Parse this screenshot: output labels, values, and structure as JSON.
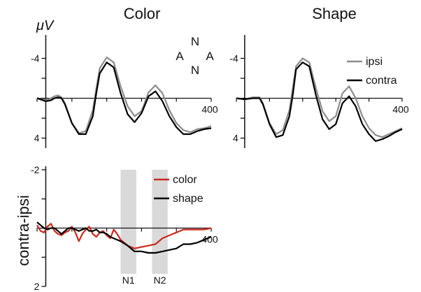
{
  "unit_label": "μV",
  "diagram_letters": {
    "top": "N",
    "left": "A",
    "right": "A",
    "bottom": "N",
    "left_color": "#5b4fd6"
  },
  "chart_data": [
    {
      "type": "line",
      "title": "Color",
      "xlim": [
        -100,
        400
      ],
      "ylim": [
        -6,
        5
      ],
      "y_inverted": true,
      "yticks": [
        -4,
        4
      ],
      "xtick_label": "400",
      "series": [
        {
          "name": "ipsi",
          "color": "#8c8c8c",
          "x": [
            -100,
            -75,
            -60,
            -50,
            -40,
            -30,
            -20,
            0,
            20,
            40,
            60,
            70,
            80,
            100,
            120,
            140,
            160,
            180,
            200,
            220,
            240,
            260,
            280,
            300,
            320,
            340,
            360,
            380,
            400
          ],
          "y": [
            0,
            0.2,
            0,
            -0.2,
            -0.3,
            -0.1,
            0.5,
            2.5,
            3.5,
            3.3,
            1.2,
            -1,
            -3,
            -4.1,
            -3.6,
            -1.2,
            0.8,
            1.8,
            1.3,
            -0.6,
            -1.3,
            -0.5,
            1.2,
            2.5,
            3.2,
            3.4,
            3.1,
            3,
            2.8
          ]
        },
        {
          "name": "contra",
          "color": "#000000",
          "x": [
            -100,
            -75,
            -60,
            -50,
            -40,
            -30,
            -20,
            0,
            20,
            40,
            60,
            70,
            80,
            100,
            120,
            140,
            160,
            180,
            200,
            220,
            240,
            260,
            280,
            300,
            320,
            340,
            360,
            380,
            400
          ],
          "y": [
            0,
            0.3,
            0.2,
            0,
            -0.1,
            0,
            0.6,
            2.5,
            3.6,
            3.6,
            1.8,
            -0.5,
            -2.5,
            -3.6,
            -3.1,
            -0.5,
            1.6,
            2.4,
            1.5,
            -0.2,
            -0.7,
            0.3,
            1.8,
            2.9,
            3.6,
            3.6,
            3.3,
            3.1,
            3
          ]
        }
      ]
    },
    {
      "type": "line",
      "title": "Shape",
      "xlim": [
        -100,
        400
      ],
      "ylim": [
        -6,
        5
      ],
      "y_inverted": true,
      "yticks": [
        -4,
        4
      ],
      "xtick_label": "400",
      "legend": [
        "ipsi",
        "contra"
      ],
      "series": [
        {
          "name": "ipsi",
          "color": "#8c8c8c",
          "x": [
            -100,
            -75,
            -50,
            -30,
            -20,
            0,
            20,
            40,
            60,
            70,
            80,
            100,
            120,
            140,
            160,
            180,
            200,
            220,
            240,
            260,
            280,
            300,
            320,
            340,
            360,
            380,
            400
          ],
          "y": [
            0,
            0.1,
            -0.1,
            -0.1,
            0.5,
            2.5,
            3.6,
            3.2,
            1.2,
            -1,
            -3.2,
            -4,
            -3.6,
            -1,
            1.3,
            2.3,
            1.8,
            -0.5,
            -1.2,
            0,
            1.8,
            3,
            3.7,
            3.9,
            3.6,
            3.3,
            3
          ]
        },
        {
          "name": "contra",
          "color": "#000000",
          "x": [
            -100,
            -75,
            -50,
            -30,
            -20,
            0,
            20,
            40,
            60,
            70,
            80,
            100,
            120,
            140,
            160,
            180,
            200,
            220,
            240,
            260,
            280,
            300,
            320,
            340,
            360,
            380,
            400
          ],
          "y": [
            0,
            0.1,
            0,
            0,
            0.6,
            2.6,
            3.9,
            3.7,
            1.8,
            -0.3,
            -2.9,
            -3.6,
            -3.2,
            -0.3,
            2.1,
            3.1,
            2.6,
            0.5,
            -0.2,
            0.8,
            2.6,
            3.6,
            4.3,
            4.1,
            3.8,
            3.4,
            3.1
          ]
        }
      ]
    },
    {
      "type": "line",
      "title": "",
      "ylabel": "contra-ipsi",
      "xlim": [
        -100,
        400
      ],
      "ylim": [
        -2,
        2
      ],
      "y_inverted": true,
      "yticks": [
        -2,
        2
      ],
      "xtick_label": "400",
      "legend": [
        "color",
        "shape"
      ],
      "shaded_bands": [
        {
          "label": "N1",
          "x0": 140,
          "x1": 185
        },
        {
          "label": "N2",
          "x0": 230,
          "x1": 275
        }
      ],
      "series": [
        {
          "name": "color",
          "color": "#cc2a1e",
          "x": [
            -100,
            -90,
            -80,
            -70,
            -60,
            -50,
            -40,
            -30,
            -20,
            -10,
            0,
            10,
            20,
            30,
            40,
            50,
            60,
            70,
            80,
            90,
            100,
            110,
            120,
            130,
            140,
            160,
            180,
            200,
            220,
            240,
            260,
            280,
            300,
            320,
            340,
            360,
            380,
            400
          ],
          "y": [
            -0.1,
            0.1,
            0.15,
            -0.05,
            -0.15,
            0.1,
            0.2,
            0.25,
            0.15,
            0.1,
            -0.05,
            0.15,
            0.45,
            0.2,
            0.05,
            -0.05,
            0.2,
            0.3,
            0.15,
            0.1,
            0.25,
            0.35,
            0.05,
            0.2,
            0.4,
            0.6,
            0.7,
            0.65,
            0.6,
            0.55,
            0.35,
            0.25,
            0.15,
            0.05,
            0.05,
            0.05,
            0.05,
            0.0
          ]
        },
        {
          "name": "shape",
          "color": "#000000",
          "x": [
            -100,
            -90,
            -80,
            -70,
            -60,
            -50,
            -40,
            -30,
            -20,
            -10,
            0,
            10,
            20,
            30,
            40,
            50,
            60,
            70,
            80,
            90,
            100,
            110,
            120,
            130,
            140,
            160,
            180,
            200,
            220,
            240,
            260,
            280,
            300,
            320,
            340,
            360,
            380,
            400
          ],
          "y": [
            -0.2,
            -0.1,
            0.0,
            0.05,
            0.0,
            0.0,
            0.1,
            0.2,
            0.1,
            0.0,
            0.0,
            0.05,
            0.1,
            0.05,
            0.0,
            0.1,
            0.1,
            0.05,
            0.15,
            0.15,
            0.2,
            0.3,
            0.35,
            0.4,
            0.45,
            0.6,
            0.8,
            0.8,
            0.85,
            0.85,
            0.8,
            0.75,
            0.7,
            0.55,
            0.55,
            0.5,
            0.4,
            0.3
          ]
        }
      ]
    }
  ]
}
